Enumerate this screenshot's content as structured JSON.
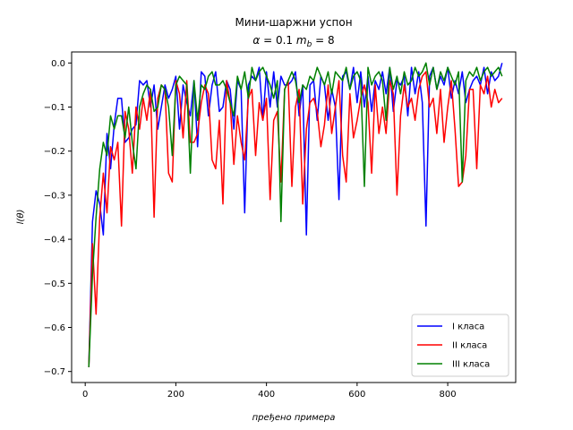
{
  "chart_data": {
    "type": "line",
    "title": "Мини-шаржни успон",
    "subtitle": "α = 0.1 m_b = 8",
    "subtitle_parts": {
      "alpha": "α",
      "eq1": " = 0.1 ",
      "m": "m",
      "b": "b",
      "eq2": " = 8"
    },
    "xlabel": "пређено примера",
    "ylabel": "l(θ)",
    "xlim": [
      -30,
      950
    ],
    "ylim": [
      -0.725,
      0.025
    ],
    "xticks": [
      0,
      200,
      400,
      600,
      800
    ],
    "yticks": [
      0.0,
      -0.1,
      -0.2,
      -0.3,
      -0.4,
      -0.5,
      -0.6,
      -0.7
    ],
    "ytick_labels": [
      "0.0",
      "−0.1",
      "−0.2",
      "−0.3",
      "−0.4",
      "−0.5",
      "−0.6",
      "−0.7"
    ],
    "legend_position": "lower-right",
    "series": [
      {
        "name": "I класа",
        "color": "#0000ff",
        "x": [
          8,
          16,
          24,
          32,
          40,
          48,
          56,
          64,
          72,
          80,
          88,
          96,
          104,
          112,
          120,
          128,
          136,
          144,
          152,
          160,
          168,
          176,
          184,
          192,
          200,
          208,
          216,
          224,
          232,
          240,
          248,
          256,
          264,
          272,
          280,
          288,
          296,
          304,
          312,
          320,
          328,
          336,
          344,
          352,
          360,
          368,
          376,
          384,
          392,
          400,
          408,
          416,
          424,
          432,
          440,
          448,
          456,
          464,
          472,
          480,
          488,
          496,
          504,
          512,
          520,
          528,
          536,
          544,
          552,
          560,
          568,
          576,
          584,
          592,
          600,
          608,
          616,
          624,
          632,
          640,
          648,
          656,
          664,
          672,
          680,
          688,
          696,
          704,
          712,
          720,
          728,
          736,
          744,
          752,
          760,
          768,
          776,
          784,
          792,
          800,
          808,
          816,
          824,
          832,
          840,
          848,
          856,
          864,
          872,
          880,
          888,
          896,
          904,
          912,
          920
        ],
        "y": [
          -0.69,
          -0.36,
          -0.29,
          -0.32,
          -0.39,
          -0.16,
          -0.24,
          -0.14,
          -0.08,
          -0.08,
          -0.18,
          -0.17,
          -0.15,
          -0.14,
          -0.04,
          -0.05,
          -0.04,
          -0.1,
          -0.05,
          -0.15,
          -0.1,
          -0.05,
          -0.08,
          -0.06,
          -0.03,
          -0.15,
          -0.05,
          -0.09,
          -0.12,
          -0.04,
          -0.19,
          -0.02,
          -0.03,
          -0.12,
          -0.05,
          -0.02,
          -0.11,
          -0.1,
          -0.04,
          -0.06,
          -0.15,
          -0.04,
          -0.06,
          -0.34,
          -0.05,
          -0.03,
          -0.04,
          -0.01,
          -0.13,
          -0.02,
          -0.1,
          -0.02,
          -0.1,
          -0.03,
          -0.05,
          -0.05,
          -0.04,
          -0.02,
          -0.12,
          -0.05,
          -0.39,
          -0.05,
          -0.04,
          -0.13,
          -0.03,
          -0.05,
          -0.13,
          -0.06,
          -0.1,
          -0.31,
          -0.03,
          -0.02,
          -0.06,
          -0.01,
          -0.09,
          -0.02,
          -0.1,
          -0.03,
          -0.11,
          -0.04,
          -0.06,
          -0.02,
          -0.07,
          -0.01,
          -0.11,
          -0.04,
          -0.05,
          -0.03,
          -0.12,
          -0.01,
          -0.07,
          -0.02,
          -0.09,
          -0.37,
          -0.03,
          -0.01,
          -0.06,
          -0.03,
          -0.05,
          -0.01,
          -0.08,
          -0.04,
          -0.07,
          -0.02,
          -0.09,
          -0.06,
          -0.04,
          -0.03,
          -0.05,
          -0.01,
          -0.07,
          -0.02,
          -0.04,
          -0.03,
          0.0
        ]
      },
      {
        "name": "II класа",
        "color": "#ff0000",
        "x": [
          8,
          16,
          24,
          32,
          40,
          48,
          56,
          64,
          72,
          80,
          88,
          96,
          104,
          112,
          120,
          128,
          136,
          144,
          152,
          160,
          168,
          176,
          184,
          192,
          200,
          208,
          216,
          224,
          232,
          240,
          248,
          256,
          264,
          272,
          280,
          288,
          296,
          304,
          312,
          320,
          328,
          336,
          344,
          352,
          360,
          368,
          376,
          384,
          392,
          400,
          408,
          416,
          424,
          432,
          440,
          448,
          456,
          464,
          472,
          480,
          488,
          496,
          504,
          512,
          520,
          528,
          536,
          544,
          552,
          560,
          568,
          576,
          584,
          592,
          600,
          608,
          616,
          624,
          632,
          640,
          648,
          656,
          664,
          672,
          680,
          688,
          696,
          704,
          712,
          720,
          728,
          736,
          744,
          752,
          760,
          768,
          776,
          784,
          792,
          800,
          808,
          816,
          824,
          832,
          840,
          848,
          856,
          864,
          872,
          880,
          888,
          896,
          904,
          912,
          920
        ],
        "y": [
          -0.69,
          -0.41,
          -0.57,
          -0.35,
          -0.25,
          -0.34,
          -0.19,
          -0.22,
          -0.18,
          -0.37,
          -0.11,
          -0.15,
          -0.25,
          -0.1,
          -0.15,
          -0.08,
          -0.13,
          -0.06,
          -0.35,
          -0.08,
          -0.05,
          -0.06,
          -0.25,
          -0.27,
          -0.04,
          -0.07,
          -0.17,
          -0.04,
          -0.18,
          -0.18,
          -0.16,
          -0.09,
          -0.05,
          -0.07,
          -0.22,
          -0.24,
          -0.13,
          -0.32,
          -0.04,
          -0.09,
          -0.23,
          -0.12,
          -0.18,
          -0.22,
          -0.08,
          -0.06,
          -0.21,
          -0.09,
          -0.13,
          -0.08,
          -0.31,
          -0.13,
          -0.11,
          -0.27,
          -0.06,
          -0.04,
          -0.28,
          -0.1,
          -0.06,
          -0.32,
          -0.15,
          -0.09,
          -0.08,
          -0.11,
          -0.19,
          -0.14,
          -0.05,
          -0.16,
          -0.1,
          -0.04,
          -0.21,
          -0.27,
          -0.07,
          -0.17,
          -0.13,
          -0.08,
          -0.05,
          -0.09,
          -0.25,
          -0.05,
          -0.16,
          -0.1,
          -0.16,
          -0.04,
          -0.07,
          -0.3,
          -0.12,
          -0.05,
          -0.1,
          -0.08,
          -0.13,
          -0.06,
          -0.03,
          -0.02,
          -0.1,
          -0.08,
          -0.16,
          -0.06,
          -0.18,
          -0.1,
          -0.04,
          -0.15,
          -0.28,
          -0.27,
          -0.21,
          -0.06,
          -0.06,
          -0.24,
          -0.05,
          -0.07,
          -0.03,
          -0.1,
          -0.06,
          -0.09,
          -0.08
        ]
      },
      {
        "name": "III класа",
        "color": "#008000",
        "x": [
          8,
          16,
          24,
          32,
          40,
          48,
          56,
          64,
          72,
          80,
          88,
          96,
          104,
          112,
          120,
          128,
          136,
          144,
          152,
          160,
          168,
          176,
          184,
          192,
          200,
          208,
          216,
          224,
          232,
          240,
          248,
          256,
          264,
          272,
          280,
          288,
          296,
          304,
          312,
          320,
          328,
          336,
          344,
          352,
          360,
          368,
          376,
          384,
          392,
          400,
          408,
          416,
          424,
          432,
          440,
          448,
          456,
          464,
          472,
          480,
          488,
          496,
          504,
          512,
          520,
          528,
          536,
          544,
          552,
          560,
          568,
          576,
          584,
          592,
          600,
          608,
          616,
          624,
          632,
          640,
          648,
          656,
          664,
          672,
          680,
          688,
          696,
          704,
          712,
          720,
          728,
          736,
          744,
          752,
          760,
          768,
          776,
          784,
          792,
          800,
          808,
          816,
          824,
          832,
          840,
          848,
          856,
          864,
          872,
          880,
          888,
          896,
          904,
          912,
          920
        ],
        "y": [
          -0.69,
          -0.48,
          -0.35,
          -0.24,
          -0.18,
          -0.21,
          -0.12,
          -0.15,
          -0.12,
          -0.12,
          -0.17,
          -0.1,
          -0.18,
          -0.24,
          -0.1,
          -0.07,
          -0.05,
          -0.06,
          -0.11,
          -0.1,
          -0.05,
          -0.06,
          -0.1,
          -0.21,
          -0.05,
          -0.03,
          -0.04,
          -0.05,
          -0.25,
          -0.04,
          -0.13,
          -0.05,
          -0.06,
          -0.03,
          -0.02,
          -0.05,
          -0.05,
          -0.04,
          -0.06,
          -0.09,
          -0.12,
          -0.03,
          -0.06,
          -0.02,
          -0.08,
          -0.01,
          -0.04,
          -0.02,
          -0.01,
          -0.03,
          -0.05,
          -0.08,
          -0.04,
          -0.36,
          -0.06,
          -0.04,
          -0.02,
          -0.04,
          -0.09,
          -0.05,
          -0.06,
          -0.03,
          -0.04,
          -0.01,
          -0.03,
          -0.05,
          -0.02,
          -0.07,
          -0.02,
          -0.03,
          -0.04,
          -0.01,
          -0.06,
          -0.03,
          -0.02,
          -0.04,
          -0.28,
          -0.01,
          -0.05,
          -0.03,
          -0.02,
          -0.04,
          -0.13,
          -0.01,
          -0.06,
          -0.03,
          -0.07,
          -0.02,
          -0.05,
          -0.04,
          -0.01,
          -0.03,
          -0.02,
          0.0,
          -0.05,
          -0.01,
          -0.06,
          -0.02,
          -0.04,
          -0.01,
          -0.03,
          -0.05,
          -0.02,
          -0.27,
          -0.04,
          -0.02,
          -0.03,
          -0.01,
          -0.04,
          -0.02,
          -0.01,
          -0.03,
          -0.02,
          -0.01,
          -0.03
        ]
      }
    ]
  }
}
